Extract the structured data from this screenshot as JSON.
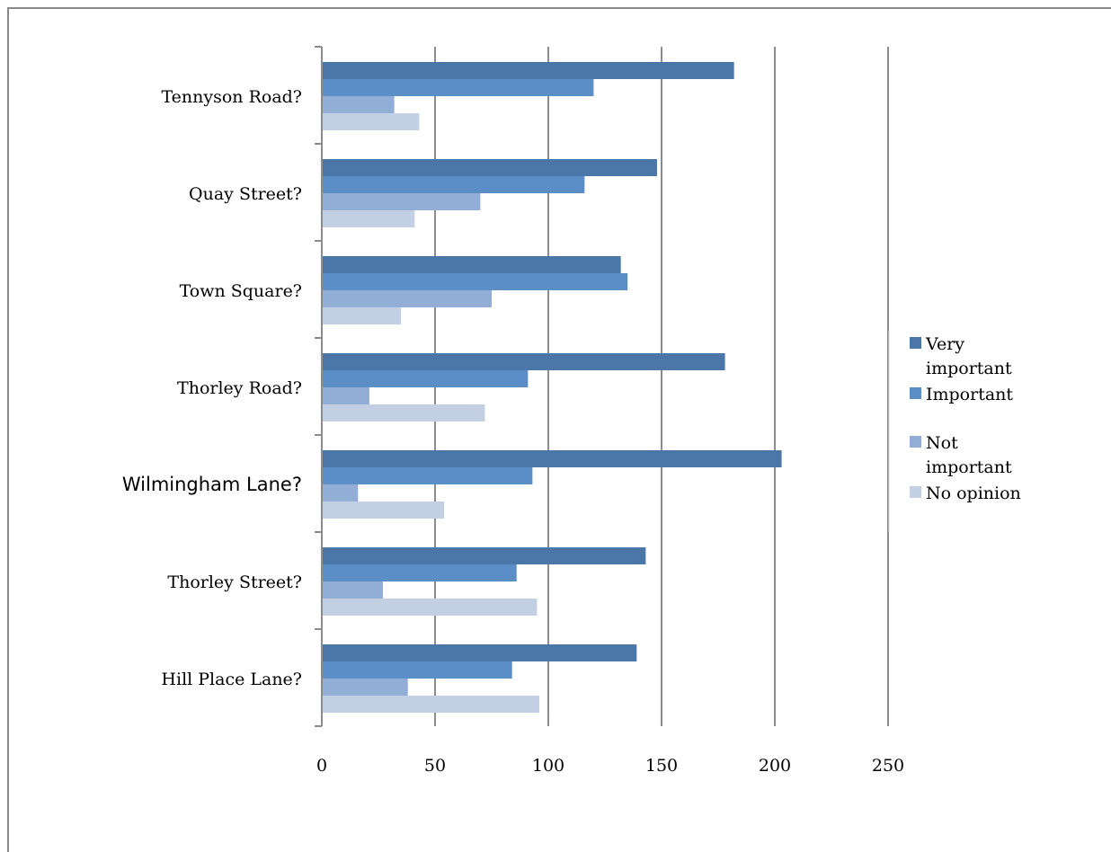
{
  "chart_data": {
    "type": "bar",
    "orientation": "horizontal",
    "categories": [
      "Tennyson Road?",
      "Quay Street?",
      "Town Square?",
      "Thorley Road?",
      "Wilmingham Lane?",
      "Thorley Street?",
      "Hill Place Lane?"
    ],
    "series": [
      {
        "name": "Very important",
        "color": "#4a76a8",
        "values": [
          182,
          148,
          132,
          178,
          203,
          143,
          139
        ]
      },
      {
        "name": "Important",
        "color": "#5b8ec7",
        "values": [
          120,
          116,
          135,
          91,
          93,
          86,
          84
        ]
      },
      {
        "name": "Not important",
        "color": "#93aed6",
        "values": [
          32,
          70,
          75,
          21,
          16,
          27,
          38
        ]
      },
      {
        "name": "No opinion",
        "color": "#c3cfe3",
        "values": [
          43,
          41,
          35,
          72,
          54,
          95,
          96
        ]
      }
    ],
    "xlim": [
      0,
      250
    ],
    "xticks": [
      "0",
      "50",
      "100",
      "150",
      "200",
      "250"
    ],
    "grid": "vertical",
    "legend": "right",
    "title": "",
    "xlabel": "",
    "ylabel": ""
  }
}
